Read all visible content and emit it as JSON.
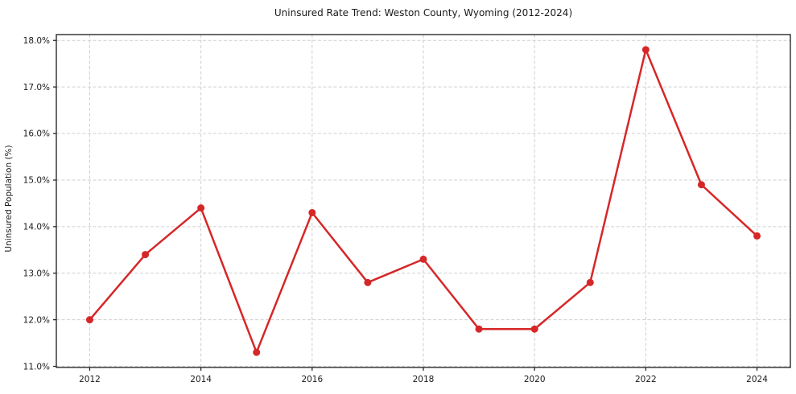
{
  "chart_data": {
    "type": "line",
    "title": "Uninsured Rate Trend: Weston County, Wyoming (2012-2024)",
    "xlabel": "",
    "ylabel": "Uninsured Population (%)",
    "x": [
      2012,
      2013,
      2014,
      2015,
      2016,
      2017,
      2018,
      2019,
      2020,
      2021,
      2022,
      2023,
      2024
    ],
    "y": [
      12.0,
      13.4,
      14.4,
      11.3,
      14.3,
      12.8,
      13.3,
      11.8,
      11.8,
      12.8,
      17.8,
      14.9,
      13.8
    ],
    "xticks": [
      2012,
      2014,
      2016,
      2018,
      2020,
      2022,
      2024
    ],
    "yticks": [
      11.0,
      12.0,
      13.0,
      14.0,
      15.0,
      16.0,
      17.0,
      18.0
    ],
    "ytick_suffix": "%",
    "ytick_decimals": 1,
    "xlim": [
      2011.4,
      2024.6
    ],
    "ylim": [
      10.975,
      18.125
    ],
    "grid": true,
    "legend": "none",
    "line_color": "#d62728",
    "marker": "circle",
    "marker_radius": 4.5,
    "line_width": 2.5,
    "axis_color": "#1a1a1a",
    "grid_color": "#cfcfcf",
    "background_color": "#ffffff"
  }
}
